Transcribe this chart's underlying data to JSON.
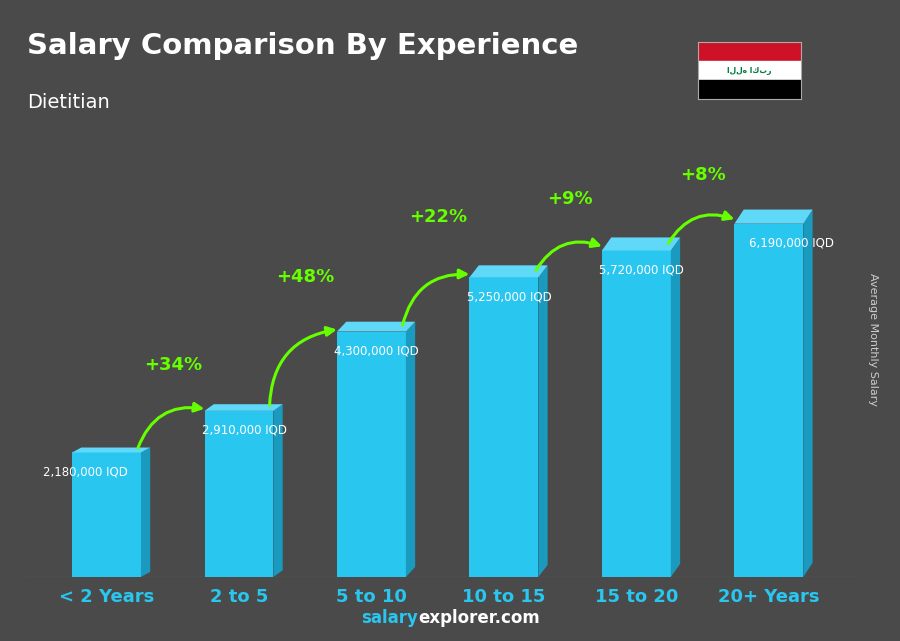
{
  "title": "Salary Comparison By Experience",
  "subtitle": "Dietitian",
  "categories": [
    "< 2 Years",
    "2 to 5",
    "5 to 10",
    "10 to 15",
    "15 to 20",
    "20+ Years"
  ],
  "values": [
    2180000,
    2910000,
    4300000,
    5250000,
    5720000,
    6190000
  ],
  "bar_color": "#29c6f0",
  "bar_side_color": "#1a9abf",
  "bar_top_color": "#60d8f8",
  "bg_color": "#4a4a4a",
  "title_color": "#ffffff",
  "subtitle_color": "#ffffff",
  "label_color": "#ffffff",
  "value_labels": [
    "2,180,000 IQD",
    "2,910,000 IQD",
    "4,300,000 IQD",
    "5,250,000 IQD",
    "5,720,000 IQD",
    "6,190,000 IQD"
  ],
  "pct_labels": [
    "+34%",
    "+48%",
    "+22%",
    "+9%",
    "+8%"
  ],
  "pct_color": "#66ff00",
  "arrow_color": "#66ff00",
  "ylabel": "Average Monthly Salary",
  "footer_salary": "salary",
  "footer_explorer": "explorer.com",
  "footer_salary_color": "#29c6f0",
  "footer_explorer_color": "#ffffff",
  "ylim": [
    0,
    8200000
  ],
  "xtick_color": "#29c6f0",
  "xtick_fontsize": 13,
  "bar_width": 0.52
}
